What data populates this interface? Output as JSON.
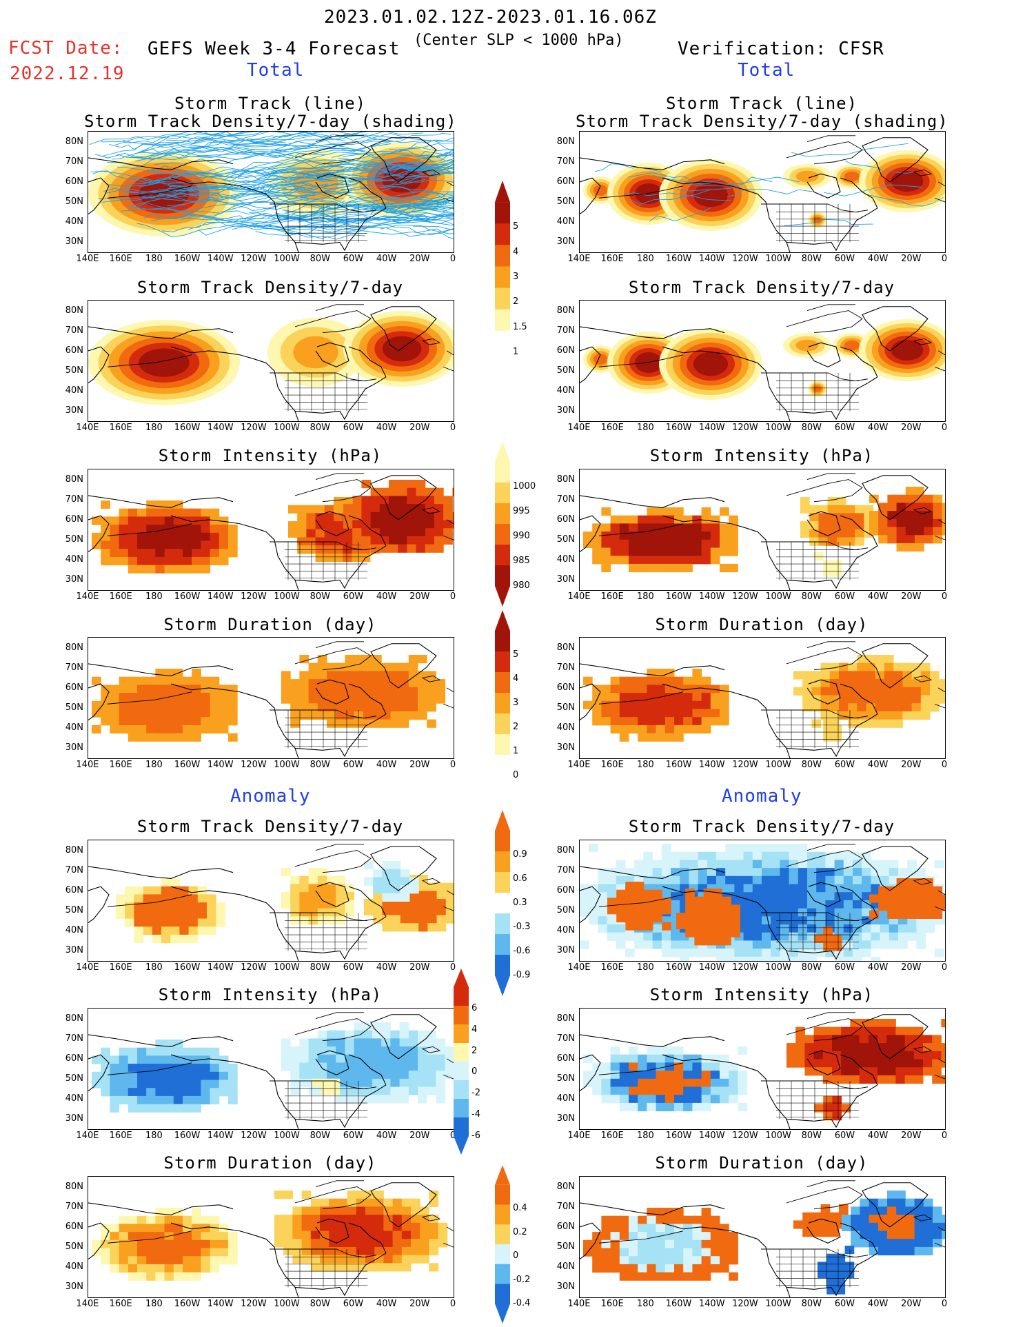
{
  "header": {
    "period": "2023.01.02.12Z-2023.01.16.06Z",
    "subtitle": "(Center SLP < 1000 hPa)",
    "fcst_label": "FCST Date:",
    "fcst_date": "2022.12.19",
    "left_title": "GEFS Week 3-4 Forecast",
    "right_title": "Verification: CFSR",
    "total_label": "Total",
    "anomaly_label": "Anomaly"
  },
  "panel_titles": {
    "track": [
      "Storm Track (line)",
      "Storm Track Density/7-day (shading)"
    ],
    "density": "Storm Track Density/7-day",
    "intensity": "Storm Intensity (hPa)",
    "duration": "Storm Duration (day)"
  },
  "axes": {
    "lat_labels": [
      "80N",
      "70N",
      "60N",
      "50N",
      "40N",
      "30N"
    ],
    "lon_labels": [
      "140E",
      "160E",
      "180",
      "160W",
      "140W",
      "120W",
      "100W",
      "80W",
      "60W",
      "40W",
      "20W",
      "0"
    ]
  },
  "colorbars": {
    "density_total": [
      "5",
      "4",
      "3",
      "2",
      "1.5",
      "1"
    ],
    "intensity_total": [
      "1000",
      "995",
      "990",
      "985",
      "980"
    ],
    "duration_total": [
      "5",
      "4",
      "3",
      "2",
      "1",
      "0"
    ],
    "density_anom": [
      "0.9",
      "0.6",
      "0.3",
      "-0.3",
      "-0.6",
      "-0.9"
    ],
    "intensity_anom": [
      "6",
      "4",
      "2",
      "0",
      "-2",
      "-4",
      "-6"
    ],
    "duration_anom": [
      "0.4",
      "0.2",
      "0",
      "-0.2",
      "-0.4"
    ]
  },
  "colors": {
    "warm": [
      "#fdf7b0",
      "#fbd35a",
      "#f9a11e",
      "#f16a10",
      "#d52b0d",
      "#a0140a"
    ],
    "cool": [
      "#d8f4fb",
      "#a5e2f5",
      "#5eb8ee",
      "#1f6fd6",
      "#0a3fb4"
    ],
    "track_line": "#1ea0e8",
    "label_red": "#e8312a",
    "label_blue": "#1f3cf0"
  }
}
